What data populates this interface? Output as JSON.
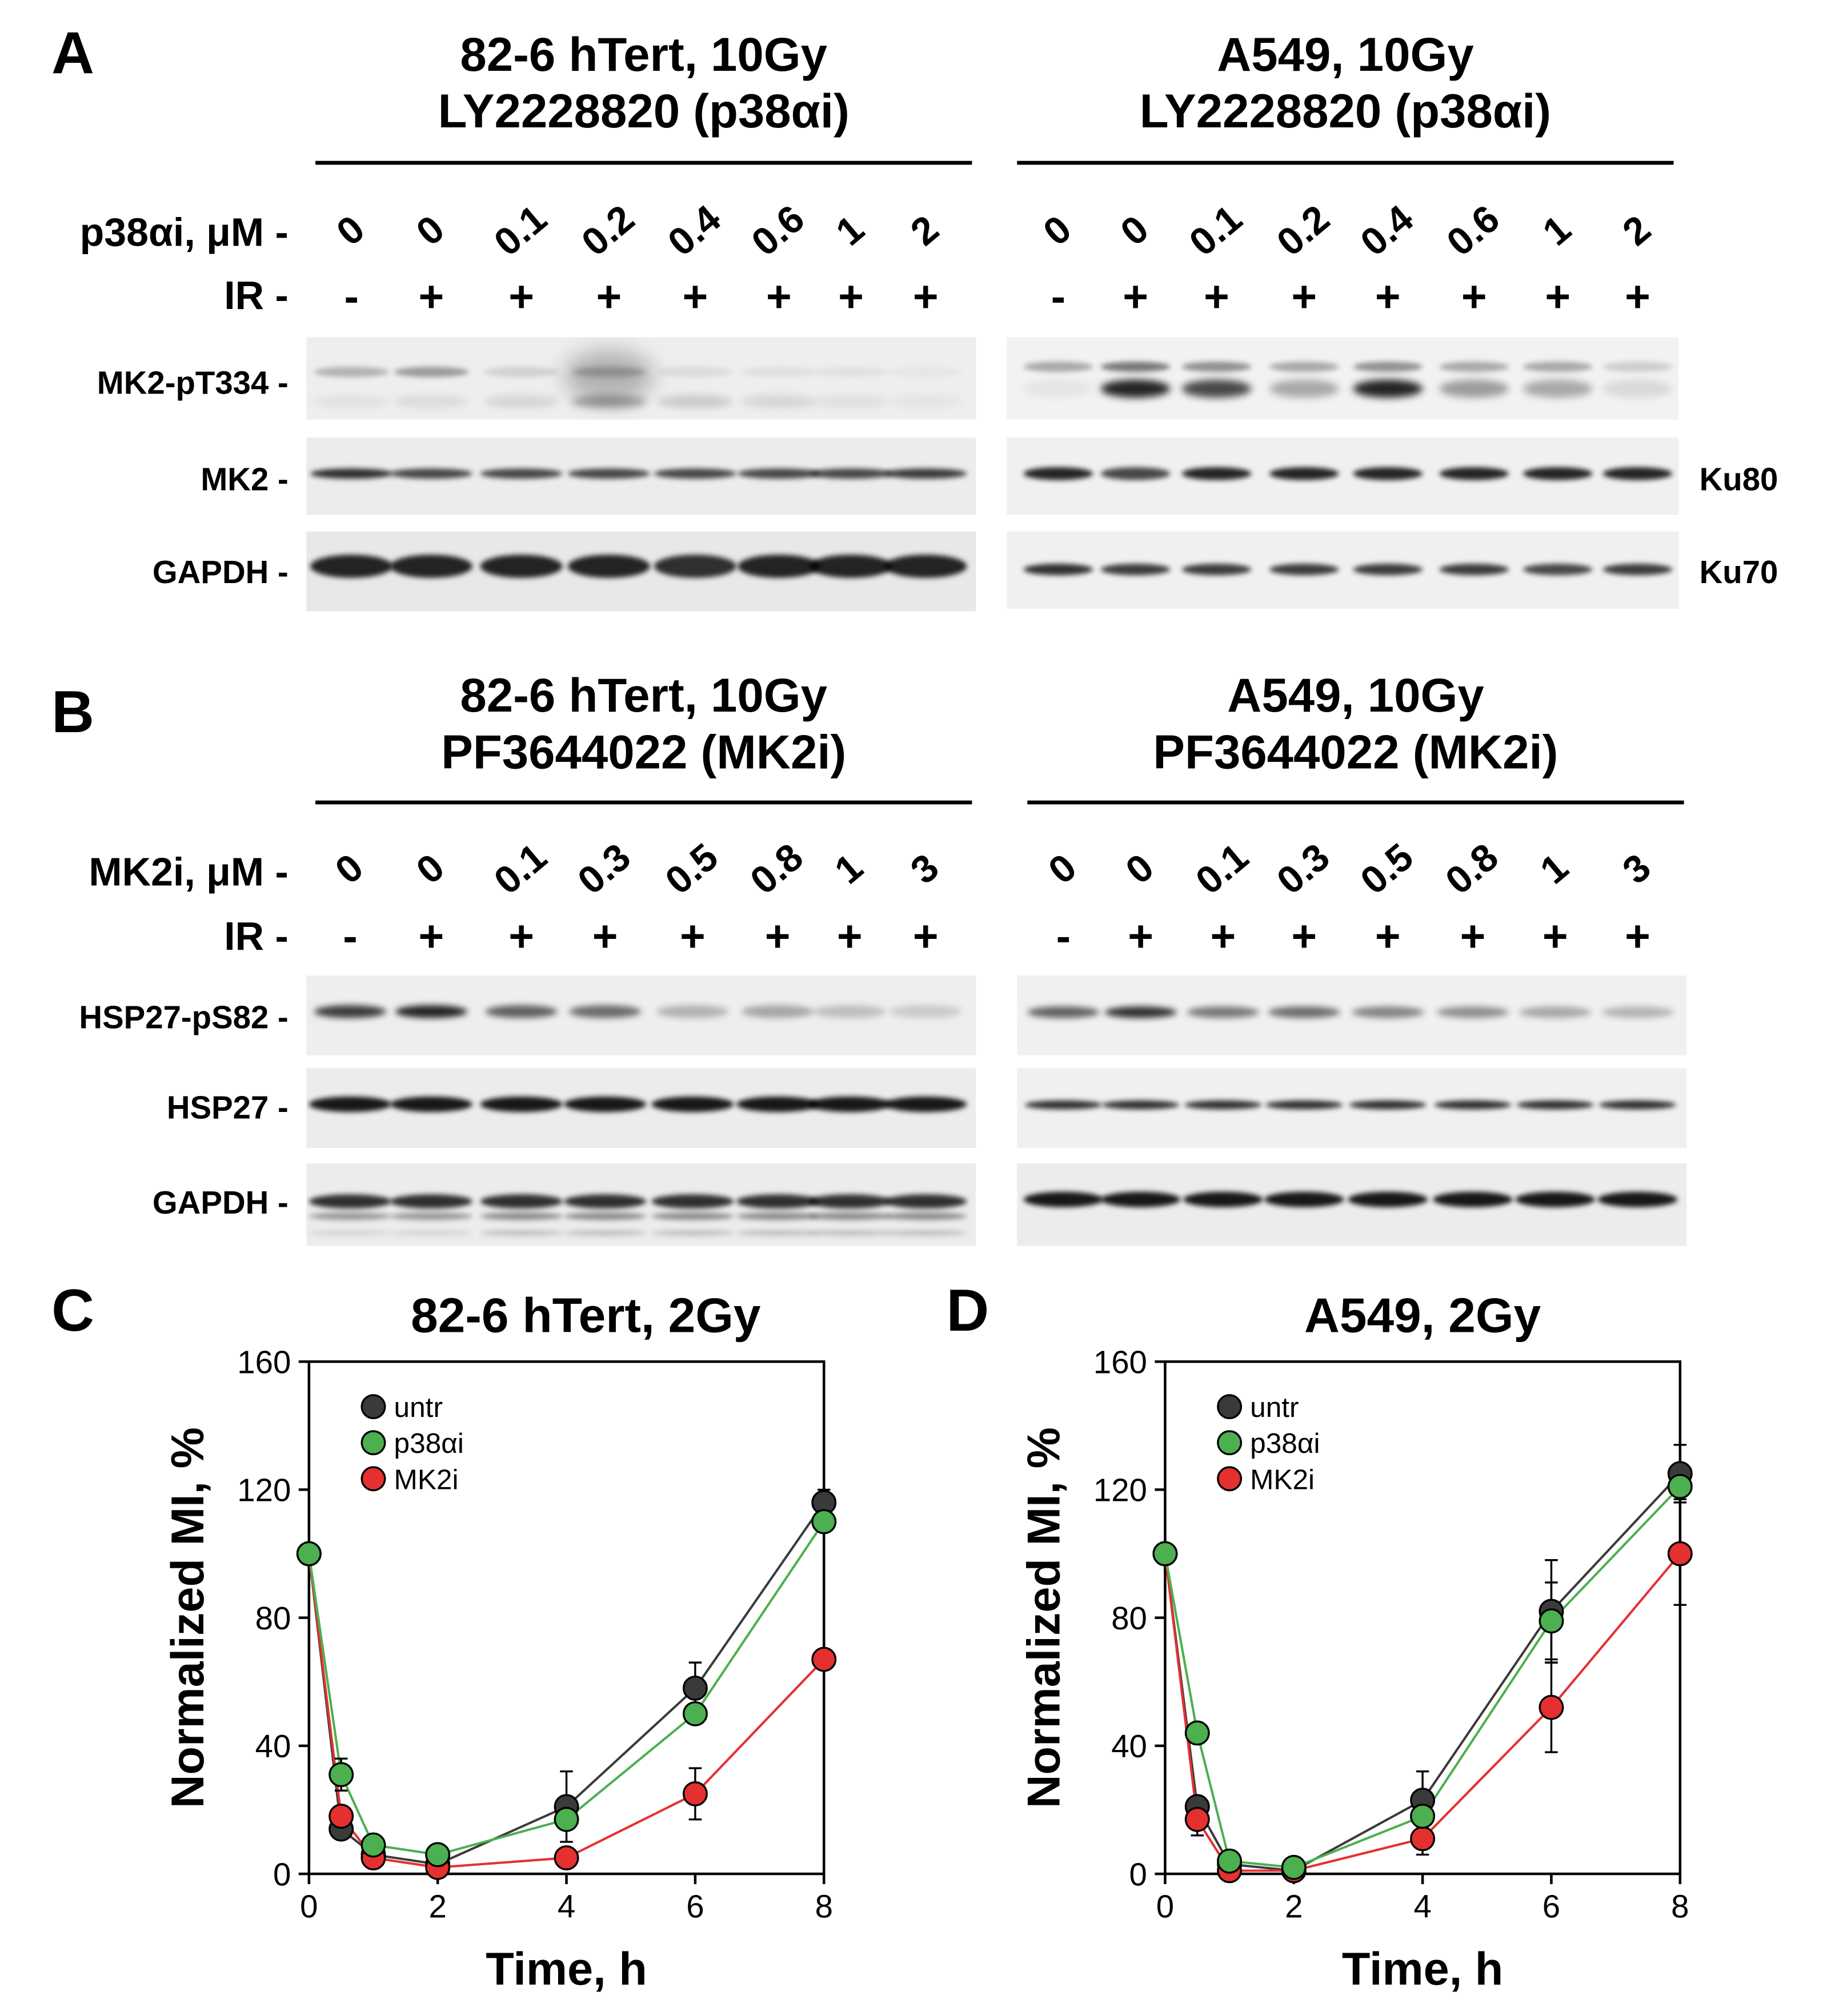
{
  "panels": {
    "A": {
      "letter": "A",
      "left": {
        "title_line1": "82-6 hTert, 10Gy",
        "title_line2": "LY2228820 (p38αi)",
        "doses": [
          "0",
          "0",
          "0.1",
          "0.2",
          "0.4",
          "0.6",
          "1",
          "2"
        ],
        "ir": [
          "-",
          "+",
          "+",
          "+",
          "+",
          "+",
          "+",
          "+"
        ],
        "blots": [
          "MK2-pT334",
          "MK2",
          "GAPDH"
        ]
      },
      "right": {
        "title_line1": "A549, 10Gy",
        "title_line2": "LY2228820 (p38αi)",
        "doses": [
          "0",
          "0",
          "0.1",
          "0.2",
          "0.4",
          "0.6",
          "1",
          "2"
        ],
        "ir": [
          "-",
          "+",
          "+",
          "+",
          "+",
          "+",
          "+",
          "+"
        ],
        "right_labels": [
          "Ku80",
          "Ku70"
        ]
      },
      "row_labels": {
        "dose": "p38αi, μM",
        "ir": "IR"
      }
    },
    "B": {
      "letter": "B",
      "left": {
        "title_line1": "82-6 hTert, 10Gy",
        "title_line2": "PF3644022 (MK2i)",
        "doses": [
          "0",
          "0",
          "0.1",
          "0.3",
          "0.5",
          "0.8",
          "1",
          "3"
        ],
        "ir": [
          "-",
          "+",
          "+",
          "+",
          "+",
          "+",
          "+",
          "+"
        ],
        "blots": [
          "HSP27-pS82",
          "HSP27",
          "GAPDH"
        ]
      },
      "right": {
        "title_line1": "A549, 10Gy",
        "title_line2": "PF3644022 (MK2i)",
        "doses": [
          "0",
          "0",
          "0.1",
          "0.3",
          "0.5",
          "0.8",
          "1",
          "3"
        ],
        "ir": [
          "-",
          "+",
          "+",
          "+",
          "+",
          "+",
          "+",
          "+"
        ]
      },
      "row_labels": {
        "dose": "MK2i, μM",
        "ir": "IR"
      }
    },
    "C": {
      "letter": "C"
    },
    "D": {
      "letter": "D"
    }
  },
  "colors": {
    "untr": "#3a3a3a",
    "p38ai": "#4caf50",
    "mk2i": "#e53030"
  },
  "chart_data": [
    {
      "type": "line",
      "title": "82-6 hTert, 2Gy",
      "xlabel": "Time, h",
      "ylabel": "Normalized MI, %",
      "xlim": [
        0,
        8
      ],
      "ylim": [
        0,
        160
      ],
      "xticks": [
        0,
        2,
        4,
        6,
        8
      ],
      "yticks": [
        0,
        40,
        80,
        120,
        160
      ],
      "legend_position": "top-left",
      "x": [
        0,
        0.5,
        1,
        2,
        4,
        6,
        8
      ],
      "series": [
        {
          "name": "untr",
          "values": [
            100,
            14,
            6,
            3,
            21,
            58,
            116
          ],
          "errors": [
            0,
            3,
            1,
            1,
            11,
            8,
            4
          ]
        },
        {
          "name": "p38αi",
          "values": [
            100,
            31,
            9,
            6,
            17,
            50,
            110
          ],
          "errors": [
            0,
            5,
            1,
            1,
            3,
            2,
            2
          ]
        },
        {
          "name": "MK2i",
          "values": [
            100,
            18,
            5,
            2,
            5,
            25,
            67
          ],
          "errors": [
            0,
            2,
            1,
            1,
            1,
            8,
            2
          ]
        }
      ]
    },
    {
      "type": "line",
      "title": "A549, 2Gy",
      "xlabel": "Time, h",
      "ylabel": "Normalized MI, %",
      "xlim": [
        0,
        8
      ],
      "ylim": [
        0,
        160
      ],
      "xticks": [
        0,
        2,
        4,
        6,
        8
      ],
      "yticks": [
        0,
        40,
        80,
        120,
        160
      ],
      "legend_position": "top-left",
      "x": [
        0,
        0.5,
        1,
        2,
        4,
        6,
        8
      ],
      "series": [
        {
          "name": "untr",
          "values": [
            100,
            21,
            3,
            1,
            23,
            82,
            125
          ],
          "errors": [
            0,
            3,
            1,
            1,
            9,
            16,
            9
          ]
        },
        {
          "name": "p38αi",
          "values": [
            100,
            44,
            4,
            2,
            18,
            79,
            121
          ],
          "errors": [
            0,
            2,
            1,
            1,
            4,
            12,
            4
          ]
        },
        {
          "name": "MK2i",
          "values": [
            100,
            17,
            1,
            1,
            11,
            52,
            100
          ],
          "errors": [
            0,
            5,
            1,
            1,
            5,
            14,
            16
          ]
        }
      ]
    }
  ]
}
